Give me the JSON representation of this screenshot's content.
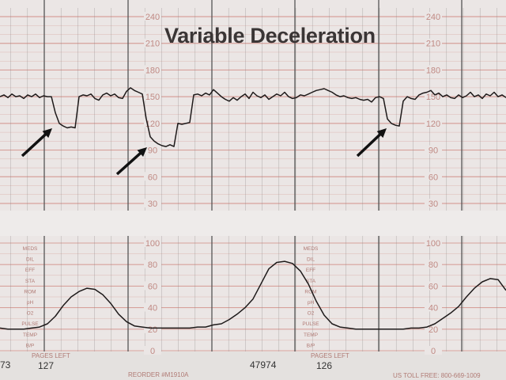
{
  "chart_data": [
    {
      "type": "line",
      "title": "Variable Deceleration",
      "ylabel": "",
      "xlabel": "",
      "ylim": [
        30,
        240
      ],
      "y_ticks": [
        "240",
        "210",
        "180",
        "150",
        "120",
        "90",
        "60",
        "30"
      ],
      "grid": true,
      "line_color": "#1e1a1a",
      "grid_color": "#d59a93",
      "values": [
        150,
        152,
        149,
        153,
        150,
        151,
        148,
        152,
        150,
        153,
        149,
        151,
        150,
        150,
        132,
        120,
        117,
        115,
        116,
        115,
        150,
        152,
        151,
        153,
        148,
        146,
        152,
        154,
        151,
        153,
        149,
        148,
        156,
        160,
        157,
        155,
        153,
        125,
        105,
        100,
        97,
        95,
        94,
        96,
        94,
        120,
        119,
        120,
        121,
        152,
        153,
        151,
        154,
        152,
        158,
        154,
        150,
        147,
        145,
        149,
        146,
        150,
        153,
        148,
        155,
        151,
        149,
        152,
        147,
        150,
        153,
        151,
        155,
        150,
        148,
        149,
        152,
        151,
        153,
        155,
        157,
        158,
        159,
        157,
        155,
        152,
        150,
        151,
        149,
        148,
        149,
        147,
        146,
        147,
        144,
        149,
        150,
        148,
        125,
        120,
        118,
        117,
        145,
        150,
        148,
        147,
        152,
        154,
        155,
        157,
        152,
        154,
        150,
        152,
        149,
        148,
        152,
        149,
        151,
        155,
        150,
        152,
        148,
        153,
        151,
        155,
        150,
        152,
        149
      ],
      "annotations": [
        "arrow",
        "arrow",
        "arrow"
      ]
    },
    {
      "type": "line",
      "ylim": [
        0,
        100
      ],
      "y_ticks": [
        "100",
        "80",
        "60",
        "40",
        "20",
        "0"
      ],
      "grid": true,
      "line_color": "#1e1a1a",
      "values": [
        21,
        20,
        20,
        20,
        21,
        22,
        25,
        32,
        42,
        50,
        55,
        58,
        57,
        52,
        44,
        34,
        27,
        23,
        22,
        21,
        21,
        21,
        21,
        21,
        21,
        22,
        22,
        24,
        25,
        29,
        34,
        40,
        48,
        62,
        76,
        82,
        83,
        81,
        74,
        62,
        46,
        33,
        25,
        22,
        21,
        20,
        20,
        20,
        20,
        20,
        20,
        20,
        21,
        21,
        22,
        25,
        30,
        35,
        41,
        50,
        58,
        64,
        67,
        66,
        56
      ],
      "row_labels": [
        "MEDS",
        "DIL",
        "EFF",
        "STA",
        "ROM",
        "pH",
        "O2",
        "PULSE",
        "TEMP",
        "B/P"
      ]
    }
  ],
  "footer": {
    "left_number": "73",
    "pages_left_label_1": "PAGES LEFT",
    "pages_left_1": "127",
    "reorder": "REORDER #M1910A",
    "serial": "47974",
    "pages_left_label_2": "PAGES LEFT",
    "pages_left_2": "126",
    "toll_free": "US TOLL FREE: 800-669-1009"
  }
}
